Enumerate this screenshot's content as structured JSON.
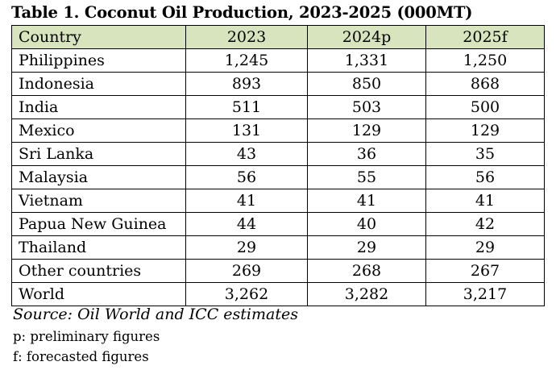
{
  "title": "Table 1. Coconut Oil Production, 2023-2025 (000MT)",
  "table": {
    "headers": [
      "Country",
      "2023",
      "2024p",
      "2025f"
    ],
    "rows": [
      [
        "Philippines",
        "1,245",
        "1,331",
        "1,250"
      ],
      [
        "Indonesia",
        "893",
        "850",
        "868"
      ],
      [
        "India",
        "511",
        "503",
        "500"
      ],
      [
        "Mexico",
        "131",
        "129",
        "129"
      ],
      [
        "Sri Lanka",
        "43",
        "36",
        "35"
      ],
      [
        "Malaysia",
        "56",
        "55",
        "56"
      ],
      [
        "Vietnam",
        "41",
        "41",
        "41"
      ],
      [
        "Papua New Guinea",
        "44",
        "40",
        "42"
      ],
      [
        "Thailand",
        "29",
        "29",
        "29"
      ],
      [
        "Other countries",
        "269",
        "268",
        "267"
      ],
      [
        "World",
        "3,262",
        "3,282",
        "3,217"
      ]
    ]
  },
  "source": "Source: Oil World and ICC estimates",
  "notes": [
    "p: preliminary figures",
    "f: forecasted figures"
  ],
  "colors": {
    "header_background": "#d7e4bd",
    "border": "#000000"
  }
}
